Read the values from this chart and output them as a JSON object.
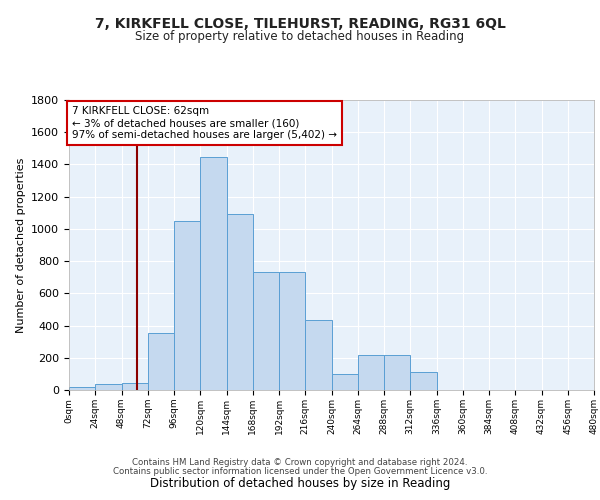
{
  "title": "7, KIRKFELL CLOSE, TILEHURST, READING, RG31 6QL",
  "subtitle": "Size of property relative to detached houses in Reading",
  "xlabel": "Distribution of detached houses by size in Reading",
  "ylabel": "Number of detached properties",
  "bar_color": "#c5d9ef",
  "bar_edge_color": "#5a9fd4",
  "background_color": "#e8f1fa",
  "bin_width": 24,
  "vline_x": 62,
  "vline_color": "#8b0000",
  "annotation_text": "7 KIRKFELL CLOSE: 62sqm\n← 3% of detached houses are smaller (160)\n97% of semi-detached houses are larger (5,402) →",
  "annotation_box_color": "white",
  "annotation_box_edge": "#cc0000",
  "xlim": [
    0,
    480
  ],
  "ylim": [
    0,
    1800
  ],
  "yticks": [
    0,
    200,
    400,
    600,
    800,
    1000,
    1200,
    1400,
    1600,
    1800
  ],
  "xtick_labels": [
    "0sqm",
    "24sqm",
    "48sqm",
    "72sqm",
    "96sqm",
    "120sqm",
    "144sqm",
    "168sqm",
    "192sqm",
    "216sqm",
    "240sqm",
    "264sqm",
    "288sqm",
    "312sqm",
    "336sqm",
    "360sqm",
    "384sqm",
    "408sqm",
    "432sqm",
    "456sqm",
    "480sqm"
  ],
  "footer_line1": "Contains HM Land Registry data © Crown copyright and database right 2024.",
  "footer_line2": "Contains public sector information licensed under the Open Government Licence v3.0.",
  "bar_heights": [
    20,
    35,
    45,
    355,
    1050,
    1445,
    1095,
    730,
    730,
    435,
    100,
    220,
    220,
    110,
    0,
    0,
    0,
    0,
    0,
    0
  ],
  "bin_starts": [
    0,
    24,
    48,
    72,
    96,
    120,
    144,
    168,
    192,
    216,
    240,
    264,
    288,
    312,
    336,
    360,
    384,
    408,
    432,
    456
  ]
}
